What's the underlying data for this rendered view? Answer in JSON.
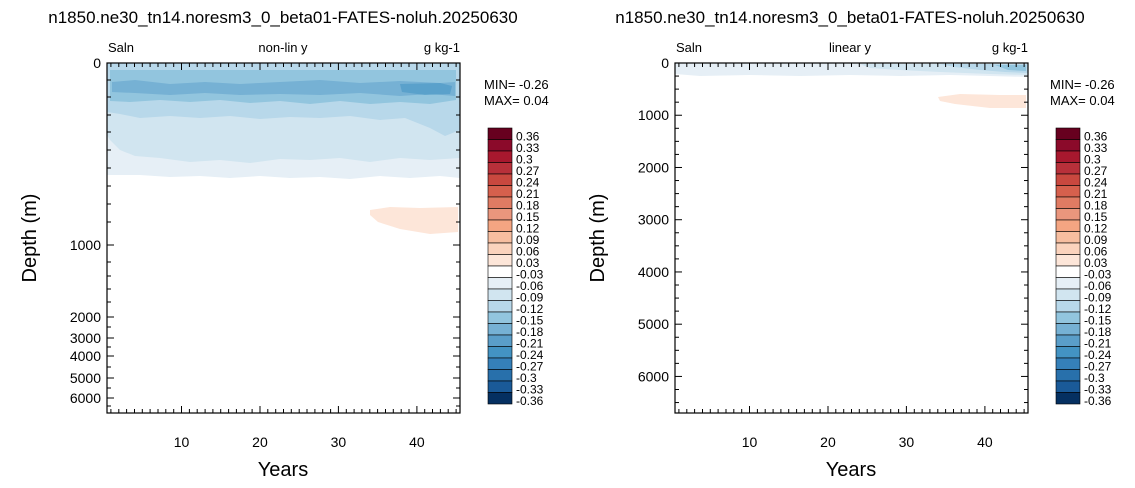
{
  "chart_data": [
    {
      "type": "heatmap",
      "title": "n1850.ne30_tn14.noresm3_0_beta01-FATES-noluh.20250630",
      "corner_left": "Saln",
      "corner_center": "non-lin y",
      "corner_right": "g kg-1",
      "xlabel": "Years",
      "ylabel": "Depth (m)",
      "x_ticks": [
        10,
        20,
        30,
        40
      ],
      "y_ticks": [
        "0",
        "1000",
        "2000",
        "3000",
        "4000",
        "5000",
        "6000"
      ],
      "y_scale": "non-linear",
      "xlim": [
        0.5,
        45.5
      ],
      "min_text": "MIN= -0.26",
      "max_text": "MAX=  0.04",
      "fields": [
        {
          "level": -0.03,
          "depth": [
            0,
            620
          ]
        },
        {
          "level": -0.06,
          "depth": [
            50,
            470
          ]
        },
        {
          "level": -0.12,
          "depth": [
            60,
            200
          ]
        },
        {
          "level": -0.18,
          "depth": [
            70,
            140
          ]
        },
        {
          "level": -0.24,
          "depth": [
            90,
            130
          ]
        },
        {
          "level": 0.03,
          "depth": [
            770,
            900
          ],
          "years": [
            33.5,
            45.5
          ]
        }
      ]
    },
    {
      "type": "heatmap",
      "title": "n1850.ne30_tn14.noresm3_0_beta01-FATES-noluh.20250630",
      "corner_left": "Saln",
      "corner_center": "linear y",
      "corner_right": "g kg-1",
      "xlabel": "Years",
      "ylabel": "Depth (m)",
      "x_ticks": [
        10,
        20,
        30,
        40
      ],
      "y_ticks": [
        "0",
        "1000",
        "2000",
        "3000",
        "4000",
        "5000",
        "6000"
      ],
      "y_scale": "linear",
      "xlim": [
        0.5,
        45.5
      ],
      "ylim": [
        0,
        6700
      ],
      "min_text": "MIN= -0.26",
      "max_text": "MAX=  0.04",
      "fields": [
        {
          "level": -0.03,
          "depth": [
            0,
            200
          ]
        },
        {
          "level": -0.12,
          "depth": [
            30,
            120
          ],
          "years": [
            34,
            45.5
          ]
        },
        {
          "level": 0.03,
          "depth": [
            500,
            800
          ],
          "years": [
            33.5,
            45.5
          ]
        }
      ]
    }
  ],
  "colorbar": {
    "labels": [
      "0.36",
      "0.33",
      "0.3",
      "0.27",
      "0.24",
      "0.21",
      "0.18",
      "0.15",
      "0.12",
      "0.09",
      "0.06",
      "0.03",
      "-0.03",
      "-0.06",
      "-0.09",
      "-0.12",
      "-0.15",
      "-0.18",
      "-0.21",
      "-0.24",
      "-0.27",
      "-0.3",
      "-0.33",
      "-0.36"
    ],
    "colors": [
      "#67001f",
      "#8b0a2a",
      "#a8182e",
      "#b8303a",
      "#c9483f",
      "#d6604d",
      "#e07b63",
      "#ea967d",
      "#f4a582",
      "#f7bea0",
      "#fbd3bd",
      "#fde6d9",
      "#ffffff",
      "#e6eff6",
      "#d1e5f0",
      "#b8d8ea",
      "#92c5de",
      "#76b1d4",
      "#5a9ec9",
      "#4393c3",
      "#3580b9",
      "#2870ab",
      "#1a5a98",
      "#053061"
    ]
  }
}
